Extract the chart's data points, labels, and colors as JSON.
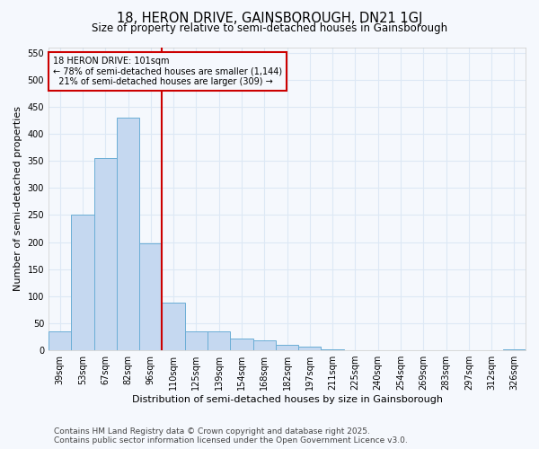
{
  "title": "18, HERON DRIVE, GAINSBOROUGH, DN21 1GJ",
  "subtitle": "Size of property relative to semi-detached houses in Gainsborough",
  "xlabel": "Distribution of semi-detached houses by size in Gainsborough",
  "ylabel": "Number of semi-detached properties",
  "categories": [
    "39sqm",
    "53sqm",
    "67sqm",
    "82sqm",
    "96sqm",
    "110sqm",
    "125sqm",
    "139sqm",
    "154sqm",
    "168sqm",
    "182sqm",
    "197sqm",
    "211sqm",
    "225sqm",
    "240sqm",
    "254sqm",
    "269sqm",
    "283sqm",
    "297sqm",
    "312sqm",
    "326sqm"
  ],
  "values": [
    35,
    250,
    355,
    430,
    198,
    88,
    35,
    35,
    22,
    18,
    10,
    7,
    2,
    0,
    0,
    0,
    0,
    0,
    0,
    0,
    1
  ],
  "bar_color": "#c5d8f0",
  "bar_edge_color": "#6baed6",
  "ylim": [
    0,
    560
  ],
  "yticks": [
    0,
    50,
    100,
    150,
    200,
    250,
    300,
    350,
    400,
    450,
    500,
    550
  ],
  "vline_x_index": 4.5,
  "vline_color": "#cc0000",
  "annotation_line1": "18 HERON DRIVE: 101sqm",
  "annotation_line2": "← 78% of semi-detached houses are smaller (1,144)",
  "annotation_line3": "  21% of semi-detached houses are larger (309) →",
  "annotation_box_color": "#cc0000",
  "footer_line1": "Contains HM Land Registry data © Crown copyright and database right 2025.",
  "footer_line2": "Contains public sector information licensed under the Open Government Licence v3.0.",
  "bg_color": "#f5f8fd",
  "grid_color": "#dde8f5",
  "title_fontsize": 10.5,
  "subtitle_fontsize": 8.5,
  "axis_label_fontsize": 8,
  "tick_fontsize": 7,
  "footer_fontsize": 6.5
}
